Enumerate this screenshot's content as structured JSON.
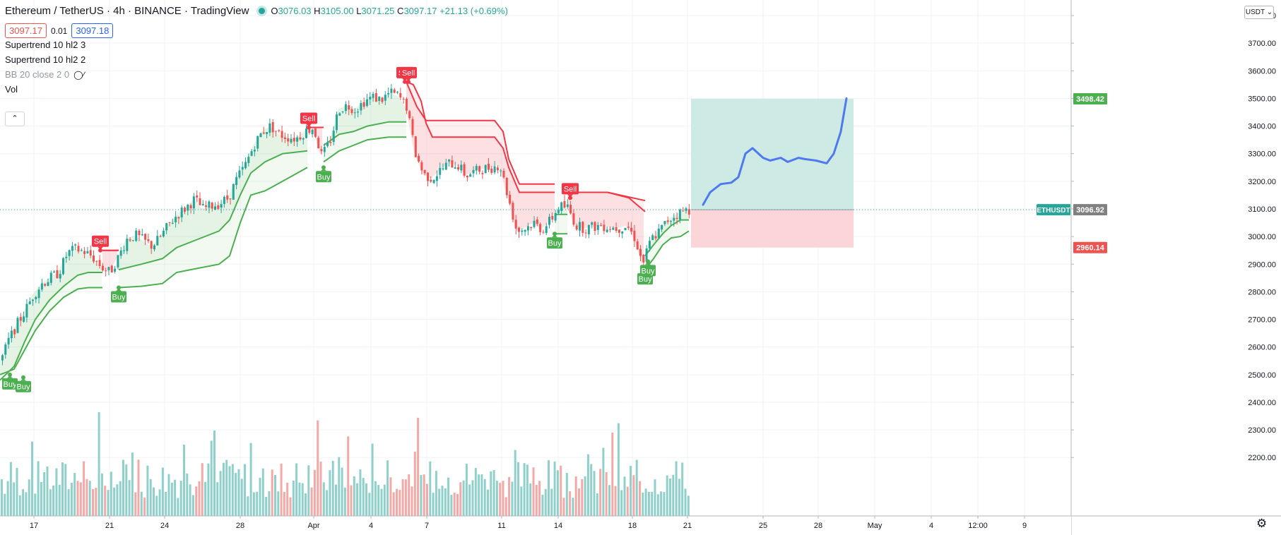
{
  "header": {
    "title": "Ethereum / TetherUS · 4h · BINANCE · TradingView",
    "ohlc": [
      {
        "k": "O",
        "v": "3076.03"
      },
      {
        "k": "H",
        "v": "3105.00"
      },
      {
        "k": "L",
        "v": "3071.25"
      },
      {
        "k": "C",
        "v": "3097.17"
      },
      {
        "k": "",
        "v": "+21.13 (+0.69%)"
      }
    ],
    "bid": "3097.17",
    "spread": "0.01",
    "ask": "3097.18"
  },
  "indicators": [
    {
      "label": "Supertrend 10 hl2 3"
    },
    {
      "label": "Supertrend 10 hl2 2"
    },
    {
      "label": "BB 20 close 2 0",
      "hidden": true
    },
    {
      "label": "Vol"
    }
  ],
  "controls": {
    "collapse_icon": "chevron-up-icon",
    "currency_button": "USDT",
    "settings_icon": "gear-icon"
  },
  "colors": {
    "up": "#26a69a",
    "down": "#ef5350",
    "up_volume": "#8fd1ca",
    "down_volume": "#f4a9a7",
    "supertrend_up": "#4caf50",
    "supertrend_down": "#f23645",
    "projection": "#4f79f0",
    "target_zone": "#cdeae5",
    "stop_zone": "#fbd5d7"
  },
  "chart_data": {
    "type": "candlestick",
    "symbol": "ETHUSDT",
    "y_axis": {
      "range": [
        2195,
        3815
      ],
      "ticks": [
        3800,
        3700,
        3600,
        3500,
        3400,
        3300,
        3200,
        3100,
        3000,
        2900,
        2800,
        2700,
        2600,
        2500,
        2400,
        2300,
        2200
      ],
      "tick_labels": [
        "3800.00",
        "3700.00",
        "3600.00",
        "3500.00",
        "3400.00",
        "3300.00",
        "3200.00",
        "3100.00",
        "3000.00",
        "2900.00",
        "2800.00",
        "2700.00",
        "2600.00",
        "2500.00",
        "2400.00",
        "2300.00",
        "2200.00"
      ]
    },
    "x_axis": {
      "tick_labels": [
        "17",
        "21",
        "24",
        "28",
        "Apr",
        "4",
        "7",
        "11",
        "14",
        "18",
        "21",
        "25",
        "28",
        "May",
        "4",
        "12:00",
        "9"
      ]
    },
    "price_labels": [
      {
        "label": "3498.42",
        "value": 3498.42,
        "kind": "target"
      },
      {
        "label": "3096.92",
        "value": 3096.92,
        "kind": "last",
        "symbol": "ETHUSDT"
      },
      {
        "label": "2960.14",
        "value": 2960.14,
        "kind": "stop"
      }
    ],
    "price_path": [
      [
        0,
        2550
      ],
      [
        10,
        2620
      ],
      [
        22,
        2680
      ],
      [
        34,
        2730
      ],
      [
        46,
        2790
      ],
      [
        58,
        2830
      ],
      [
        70,
        2850
      ],
      [
        82,
        2870
      ],
      [
        94,
        2940
      ],
      [
        106,
        2955
      ],
      [
        118,
        2945
      ],
      [
        130,
        2925
      ],
      [
        142,
        2890
      ],
      [
        154,
        2870
      ],
      [
        166,
        2925
      ],
      [
        178,
        2990
      ],
      [
        190,
        3005
      ],
      [
        202,
        2985
      ],
      [
        214,
        2965
      ],
      [
        226,
        3000
      ],
      [
        238,
        3045
      ],
      [
        250,
        3080
      ],
      [
        262,
        3105
      ],
      [
        274,
        3135
      ],
      [
        286,
        3100
      ],
      [
        298,
        3112
      ],
      [
        310,
        3120
      ],
      [
        322,
        3140
      ],
      [
        334,
        3210
      ],
      [
        346,
        3260
      ],
      [
        358,
        3330
      ],
      [
        370,
        3380
      ],
      [
        382,
        3400
      ],
      [
        394,
        3370
      ],
      [
        406,
        3360
      ],
      [
        418,
        3355
      ],
      [
        430,
        3380
      ],
      [
        442,
        3395
      ],
      [
        454,
        3290
      ],
      [
        466,
        3345
      ],
      [
        478,
        3460
      ],
      [
        490,
        3475
      ],
      [
        502,
        3460
      ],
      [
        514,
        3490
      ],
      [
        526,
        3505
      ],
      [
        538,
        3495
      ],
      [
        550,
        3520
      ],
      [
        562,
        3510
      ],
      [
        574,
        3470
      ],
      [
        586,
        3305
      ],
      [
        598,
        3225
      ],
      [
        610,
        3210
      ],
      [
        622,
        3240
      ],
      [
        634,
        3265
      ],
      [
        646,
        3260
      ],
      [
        658,
        3220
      ],
      [
        670,
        3235
      ],
      [
        682,
        3245
      ],
      [
        694,
        3250
      ],
      [
        706,
        3260
      ],
      [
        718,
        3140
      ],
      [
        730,
        3020
      ],
      [
        742,
        3030
      ],
      [
        754,
        3050
      ],
      [
        766,
        3025
      ],
      [
        778,
        3060
      ],
      [
        790,
        3110
      ],
      [
        802,
        3105
      ],
      [
        814,
        3040
      ],
      [
        826,
        3030
      ],
      [
        838,
        3035
      ],
      [
        850,
        3040
      ],
      [
        862,
        3035
      ],
      [
        874,
        3030
      ],
      [
        886,
        3040
      ],
      [
        898,
        2990
      ],
      [
        908,
        2900
      ],
      [
        920,
        2990
      ],
      [
        932,
        3020
      ],
      [
        944,
        3060
      ],
      [
        956,
        3080
      ],
      [
        968,
        3095
      ],
      [
        978,
        3097
      ]
    ],
    "supertrend_1": [
      {
        "x0": 0,
        "x1": 145,
        "trend": "up",
        "points": [
          [
            0,
            2500
          ],
          [
            20,
            2520
          ],
          [
            35,
            2590
          ],
          [
            50,
            2660
          ],
          [
            70,
            2730
          ],
          [
            90,
            2780
          ],
          [
            110,
            2810
          ],
          [
            125,
            2815
          ],
          [
            145,
            2815
          ]
        ]
      },
      {
        "x0": 145,
        "x1": 168,
        "trend": "down",
        "points": [
          [
            145,
            2950
          ],
          [
            168,
            2950
          ]
        ]
      },
      {
        "x0": 168,
        "x1": 435,
        "trend": "up",
        "points": [
          [
            168,
            2815
          ],
          [
            200,
            2820
          ],
          [
            230,
            2830
          ],
          [
            250,
            2870
          ],
          [
            280,
            2885
          ],
          [
            310,
            2900
          ],
          [
            325,
            2930
          ],
          [
            340,
            3050
          ],
          [
            355,
            3150
          ],
          [
            375,
            3165
          ],
          [
            400,
            3200
          ],
          [
            435,
            3250
          ]
        ]
      },
      {
        "x0": 435,
        "x1": 458,
        "trend": "down",
        "points": [
          [
            435,
            3395
          ],
          [
            458,
            3395
          ]
        ]
      },
      {
        "x0": 458,
        "x1": 575,
        "trend": "up",
        "points": [
          [
            458,
            3270
          ],
          [
            480,
            3310
          ],
          [
            500,
            3330
          ],
          [
            520,
            3350
          ],
          [
            550,
            3360
          ],
          [
            575,
            3360
          ]
        ]
      },
      {
        "x0": 575,
        "x1": 785,
        "trend": "down",
        "points": [
          [
            575,
            3560
          ],
          [
            585,
            3550
          ],
          [
            596,
            3490
          ],
          [
            603,
            3410
          ],
          [
            612,
            3360
          ],
          [
            700,
            3360
          ],
          [
            712,
            3320
          ],
          [
            720,
            3250
          ],
          [
            735,
            3160
          ],
          [
            785,
            3160
          ]
        ]
      },
      {
        "x0": 785,
        "x1": 803,
        "trend": "up",
        "points": [
          [
            785,
            3010
          ],
          [
            803,
            3010
          ]
        ]
      },
      {
        "x0": 803,
        "x1": 913,
        "trend": "down",
        "points": [
          [
            803,
            3160
          ],
          [
            860,
            3160
          ],
          [
            890,
            3140
          ],
          [
            913,
            3090
          ]
        ]
      },
      {
        "x0": 913,
        "x1": 975,
        "trend": "up",
        "points": [
          [
            913,
            2880
          ],
          [
            925,
            2920
          ],
          [
            938,
            2970
          ],
          [
            950,
            2995
          ],
          [
            963,
            3000
          ],
          [
            975,
            3020
          ]
        ]
      }
    ],
    "supertrend_2": [
      {
        "x0": 0,
        "x1": 145,
        "trend": "up",
        "points": [
          [
            0,
            2480
          ],
          [
            20,
            2530
          ],
          [
            35,
            2620
          ],
          [
            50,
            2700
          ],
          [
            70,
            2770
          ],
          [
            90,
            2820
          ],
          [
            110,
            2860
          ],
          [
            125,
            2870
          ],
          [
            145,
            2870
          ]
        ]
      },
      {
        "x0": 145,
        "x1": 168,
        "trend": "down",
        "points": [
          [
            145,
            2950
          ],
          [
            168,
            2950
          ]
        ]
      },
      {
        "x0": 168,
        "x1": 435,
        "trend": "up",
        "points": [
          [
            168,
            2880
          ],
          [
            200,
            2900
          ],
          [
            230,
            2920
          ],
          [
            250,
            2960
          ],
          [
            280,
            2990
          ],
          [
            310,
            3020
          ],
          [
            325,
            3060
          ],
          [
            340,
            3150
          ],
          [
            355,
            3230
          ],
          [
            375,
            3270
          ],
          [
            400,
            3300
          ],
          [
            435,
            3310
          ]
        ]
      },
      {
        "x0": 435,
        "x1": 458,
        "trend": "down",
        "points": [
          [
            435,
            3395
          ],
          [
            458,
            3395
          ]
        ]
      },
      {
        "x0": 458,
        "x1": 575,
        "trend": "up",
        "points": [
          [
            458,
            3330
          ],
          [
            480,
            3370
          ],
          [
            500,
            3380
          ],
          [
            520,
            3400
          ],
          [
            550,
            3415
          ],
          [
            575,
            3415
          ]
        ]
      },
      {
        "x0": 575,
        "x1": 785,
        "trend": "down",
        "points": [
          [
            575,
            3560
          ],
          [
            590,
            3470
          ],
          [
            603,
            3420
          ],
          [
            700,
            3420
          ],
          [
            712,
            3380
          ],
          [
            720,
            3280
          ],
          [
            735,
            3190
          ],
          [
            785,
            3190
          ]
        ]
      },
      {
        "x0": 785,
        "x1": 803,
        "trend": "up",
        "points": [
          [
            785,
            3080
          ],
          [
            803,
            3080
          ]
        ]
      },
      {
        "x0": 803,
        "x1": 913,
        "trend": "down",
        "points": [
          [
            803,
            3160
          ],
          [
            860,
            3160
          ],
          [
            913,
            3130
          ]
        ]
      },
      {
        "x0": 913,
        "x1": 975,
        "trend": "up",
        "points": [
          [
            913,
            2930
          ],
          [
            925,
            2970
          ],
          [
            938,
            3010
          ],
          [
            950,
            3040
          ],
          [
            963,
            3060
          ],
          [
            975,
            3060
          ]
        ]
      }
    ],
    "signals": [
      {
        "label": "Buy",
        "x": 14,
        "value": 2500
      },
      {
        "label": "Buy",
        "x": 33,
        "value": 2490
      },
      {
        "label": "Sell",
        "x": 142,
        "value": 2950
      },
      {
        "label": "Buy",
        "x": 168,
        "value": 2815
      },
      {
        "label": "Sell",
        "x": 437,
        "value": 3395
      },
      {
        "label": "Buy",
        "x": 458,
        "value": 3250
      },
      {
        "label": "Sell",
        "x": 573,
        "value": 3560
      },
      {
        "label": "Sell",
        "x": 578,
        "value": 3560
      },
      {
        "label": "Buy",
        "x": 785,
        "value": 3010
      },
      {
        "label": "Sell",
        "x": 807,
        "value": 3140
      },
      {
        "label": "Buy",
        "x": 913,
        "value": 2880
      },
      {
        "label": "Buy",
        "x": 917,
        "value": 2910
      }
    ],
    "position": {
      "x_start": 978,
      "x_end": 1208,
      "entry": 3096.92,
      "target": 3498.42,
      "stop": 2960.14
    },
    "projection": [
      [
        995,
        3115
      ],
      [
        1005,
        3160
      ],
      [
        1020,
        3190
      ],
      [
        1035,
        3195
      ],
      [
        1045,
        3215
      ],
      [
        1055,
        3300
      ],
      [
        1065,
        3320
      ],
      [
        1080,
        3285
      ],
      [
        1090,
        3275
      ],
      [
        1105,
        3285
      ],
      [
        1115,
        3270
      ],
      [
        1130,
        3285
      ],
      [
        1140,
        3280
      ],
      [
        1155,
        3275
      ],
      [
        1170,
        3265
      ],
      [
        1180,
        3300
      ],
      [
        1190,
        3380
      ],
      [
        1198,
        3500
      ]
    ]
  }
}
